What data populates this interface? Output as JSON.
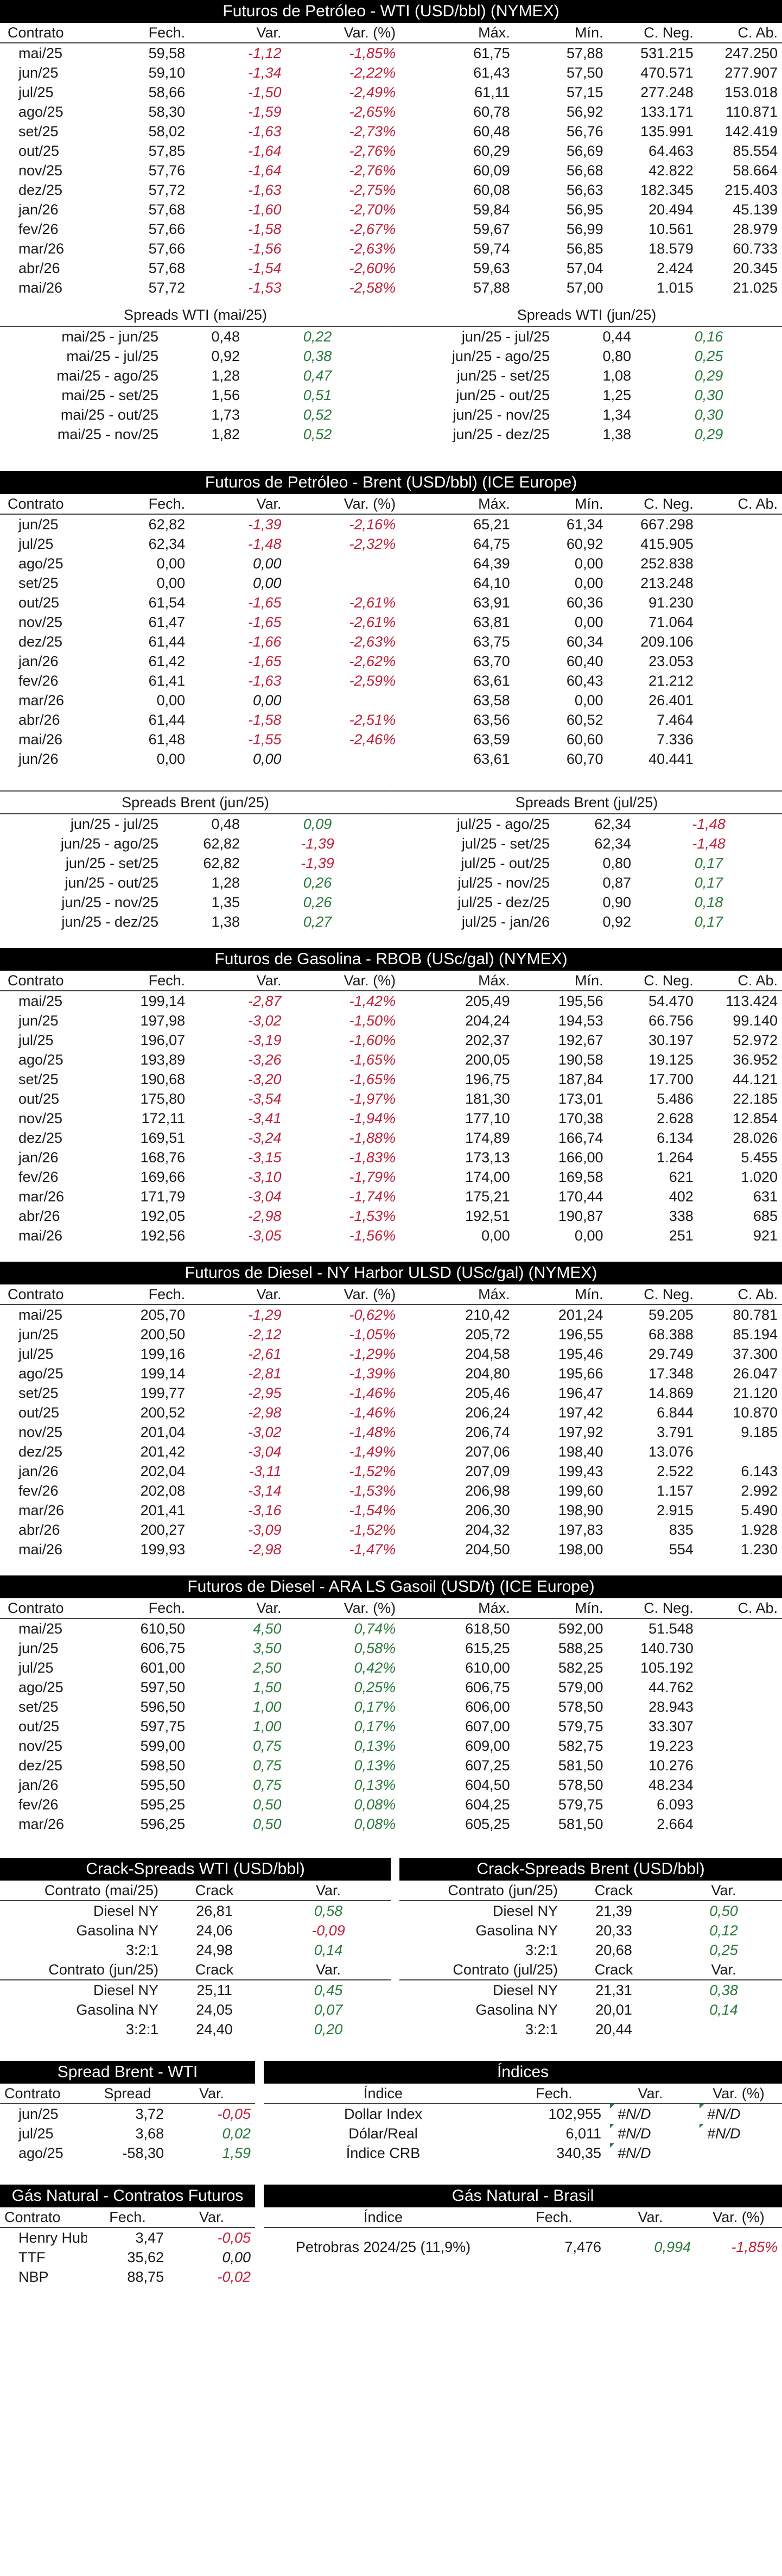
{
  "wti": {
    "title": "Futuros de Petróleo - WTI (USD/bbl) (NYMEX)",
    "columns": [
      "Contrato",
      "Fech.",
      "Var.",
      "Var. (%)",
      "Máx.",
      "Mín.",
      "C. Neg.",
      "C. Ab."
    ],
    "rows": [
      [
        "mai/25",
        "59,58",
        "-1,12",
        "-1,85%",
        "61,75",
        "57,88",
        "531.215",
        "247.250"
      ],
      [
        "jun/25",
        "59,10",
        "-1,34",
        "-2,22%",
        "61,43",
        "57,50",
        "470.571",
        "277.907"
      ],
      [
        "jul/25",
        "58,66",
        "-1,50",
        "-2,49%",
        "61,11",
        "57,15",
        "277.248",
        "153.018"
      ],
      [
        "ago/25",
        "58,30",
        "-1,59",
        "-2,65%",
        "60,78",
        "56,92",
        "133.171",
        "110.871"
      ],
      [
        "set/25",
        "58,02",
        "-1,63",
        "-2,73%",
        "60,48",
        "56,76",
        "135.991",
        "142.419"
      ],
      [
        "out/25",
        "57,85",
        "-1,64",
        "-2,76%",
        "60,29",
        "56,69",
        "64.463",
        "85.554"
      ],
      [
        "nov/25",
        "57,76",
        "-1,64",
        "-2,76%",
        "60,09",
        "56,68",
        "42.822",
        "58.664"
      ],
      [
        "dez/25",
        "57,72",
        "-1,63",
        "-2,75%",
        "60,08",
        "56,63",
        "182.345",
        "215.403"
      ],
      [
        "jan/26",
        "57,68",
        "-1,60",
        "-2,70%",
        "59,84",
        "56,95",
        "20.494",
        "45.139"
      ],
      [
        "fev/26",
        "57,66",
        "-1,58",
        "-2,67%",
        "59,67",
        "56,99",
        "10.561",
        "28.979"
      ],
      [
        "mar/26",
        "57,66",
        "-1,56",
        "-2,63%",
        "59,74",
        "56,85",
        "18.579",
        "60.733"
      ],
      [
        "abr/26",
        "57,68",
        "-1,54",
        "-2,60%",
        "59,63",
        "57,04",
        "2.424",
        "20.345"
      ],
      [
        "mai/26",
        "57,72",
        "-1,53",
        "-2,58%",
        "57,88",
        "57,00",
        "1.015",
        "21.025"
      ]
    ],
    "spreads_left": {
      "title": "Spreads WTI (mai/25)",
      "rows": [
        [
          "mai/25 - jun/25",
          "0,48",
          "0,22"
        ],
        [
          "mai/25 - jul/25",
          "0,92",
          "0,38"
        ],
        [
          "mai/25 - ago/25",
          "1,28",
          "0,47"
        ],
        [
          "mai/25 - set/25",
          "1,56",
          "0,51"
        ],
        [
          "mai/25 - out/25",
          "1,73",
          "0,52"
        ],
        [
          "mai/25 - nov/25",
          "1,82",
          "0,52"
        ]
      ]
    },
    "spreads_right": {
      "title": "Spreads WTI (jun/25)",
      "rows": [
        [
          "jun/25 - jul/25",
          "0,44",
          "0,16"
        ],
        [
          "jun/25 - ago/25",
          "0,80",
          "0,25"
        ],
        [
          "jun/25 - set/25",
          "1,08",
          "0,29"
        ],
        [
          "jun/25 - out/25",
          "1,25",
          "0,30"
        ],
        [
          "jun/25 - nov/25",
          "1,34",
          "0,30"
        ],
        [
          "jun/25 - dez/25",
          "1,38",
          "0,29"
        ]
      ]
    }
  },
  "brent": {
    "title": "Futuros de Petróleo - Brent (USD/bbl) (ICE Europe)",
    "columns": [
      "Contrato",
      "Fech.",
      "Var.",
      "Var. (%)",
      "Máx.",
      "Mín.",
      "C. Neg.",
      "C. Ab."
    ],
    "rows": [
      [
        "jun/25",
        "62,82",
        "-1,39",
        "-2,16%",
        "65,21",
        "61,34",
        "667.298",
        ""
      ],
      [
        "jul/25",
        "62,34",
        "-1,48",
        "-2,32%",
        "64,75",
        "60,92",
        "415.905",
        ""
      ],
      [
        "ago/25",
        "0,00",
        "0,00",
        "",
        "64,39",
        "0,00",
        "252.838",
        ""
      ],
      [
        "set/25",
        "0,00",
        "0,00",
        "",
        "64,10",
        "0,00",
        "213.248",
        ""
      ],
      [
        "out/25",
        "61,54",
        "-1,65",
        "-2,61%",
        "63,91",
        "60,36",
        "91.230",
        ""
      ],
      [
        "nov/25",
        "61,47",
        "-1,65",
        "-2,61%",
        "63,81",
        "0,00",
        "71.064",
        ""
      ],
      [
        "dez/25",
        "61,44",
        "-1,66",
        "-2,63%",
        "63,75",
        "60,34",
        "209.106",
        ""
      ],
      [
        "jan/26",
        "61,42",
        "-1,65",
        "-2,62%",
        "63,70",
        "60,40",
        "23.053",
        ""
      ],
      [
        "fev/26",
        "61,41",
        "-1,63",
        "-2,59%",
        "63,61",
        "60,43",
        "21.212",
        ""
      ],
      [
        "mar/26",
        "0,00",
        "0,00",
        "",
        "63,58",
        "0,00",
        "26.401",
        ""
      ],
      [
        "abr/26",
        "61,44",
        "-1,58",
        "-2,51%",
        "63,56",
        "60,52",
        "7.464",
        ""
      ],
      [
        "mai/26",
        "61,48",
        "-1,55",
        "-2,46%",
        "63,59",
        "60,60",
        "7.336",
        ""
      ],
      [
        "jun/26",
        "0,00",
        "0,00",
        "",
        "63,61",
        "60,70",
        "40.441",
        ""
      ]
    ],
    "spreads_left": {
      "title": "Spreads Brent (jun/25)",
      "rows": [
        [
          "jun/25 - jul/25",
          "0,48",
          "0,09"
        ],
        [
          "jun/25 - ago/25",
          "62,82",
          "-1,39"
        ],
        [
          "jun/25 - set/25",
          "62,82",
          "-1,39"
        ],
        [
          "jun/25 - out/25",
          "1,28",
          "0,26"
        ],
        [
          "jun/25 - nov/25",
          "1,35",
          "0,26"
        ],
        [
          "jun/25 - dez/25",
          "1,38",
          "0,27"
        ]
      ]
    },
    "spreads_right": {
      "title": "Spreads Brent (jul/25)",
      "rows": [
        [
          "jul/25 - ago/25",
          "62,34",
          "-1,48"
        ],
        [
          "jul/25 - set/25",
          "62,34",
          "-1,48"
        ],
        [
          "jul/25 - out/25",
          "0,80",
          "0,17"
        ],
        [
          "jul/25 - nov/25",
          "0,87",
          "0,17"
        ],
        [
          "jul/25 - dez/25",
          "0,90",
          "0,18"
        ],
        [
          "jul/25 - jan/26",
          "0,92",
          "0,17"
        ]
      ]
    }
  },
  "rbob": {
    "title": "Futuros de Gasolina - RBOB (USc/gal) (NYMEX)",
    "columns": [
      "Contrato",
      "Fech.",
      "Var.",
      "Var. (%)",
      "Máx.",
      "Mín.",
      "C. Neg.",
      "C. Ab."
    ],
    "rows": [
      [
        "mai/25",
        "199,14",
        "-2,87",
        "-1,42%",
        "205,49",
        "195,56",
        "54.470",
        "113.424"
      ],
      [
        "jun/25",
        "197,98",
        "-3,02",
        "-1,50%",
        "204,24",
        "194,53",
        "66.756",
        "99.140"
      ],
      [
        "jul/25",
        "196,07",
        "-3,19",
        "-1,60%",
        "202,37",
        "192,67",
        "30.197",
        "52.972"
      ],
      [
        "ago/25",
        "193,89",
        "-3,26",
        "-1,65%",
        "200,05",
        "190,58",
        "19.125",
        "36.952"
      ],
      [
        "set/25",
        "190,68",
        "-3,20",
        "-1,65%",
        "196,75",
        "187,84",
        "17.700",
        "44.121"
      ],
      [
        "out/25",
        "175,80",
        "-3,54",
        "-1,97%",
        "181,30",
        "173,01",
        "5.486",
        "22.185"
      ],
      [
        "nov/25",
        "172,11",
        "-3,41",
        "-1,94%",
        "177,10",
        "170,38",
        "2.628",
        "12.854"
      ],
      [
        "dez/25",
        "169,51",
        "-3,24",
        "-1,88%",
        "174,89",
        "166,74",
        "6.134",
        "28.026"
      ],
      [
        "jan/26",
        "168,76",
        "-3,15",
        "-1,83%",
        "173,13",
        "166,00",
        "1.264",
        "5.455"
      ],
      [
        "fev/26",
        "169,66",
        "-3,10",
        "-1,79%",
        "174,00",
        "169,58",
        "621",
        "1.020"
      ],
      [
        "mar/26",
        "171,79",
        "-3,04",
        "-1,74%",
        "175,21",
        "170,44",
        "402",
        "631"
      ],
      [
        "abr/26",
        "192,05",
        "-2,98",
        "-1,53%",
        "192,51",
        "190,87",
        "338",
        "685"
      ],
      [
        "mai/26",
        "192,56",
        "-3,05",
        "-1,56%",
        "0,00",
        "0,00",
        "251",
        "921"
      ]
    ]
  },
  "diesel_ny": {
    "title": "Futuros de Diesel - NY Harbor ULSD (USc/gal) (NYMEX)",
    "columns": [
      "Contrato",
      "Fech.",
      "Var.",
      "Var. (%)",
      "Máx.",
      "Mín.",
      "C. Neg.",
      "C. Ab."
    ],
    "rows": [
      [
        "mai/25",
        "205,70",
        "-1,29",
        "-0,62%",
        "210,42",
        "201,24",
        "59.205",
        "80.781"
      ],
      [
        "jun/25",
        "200,50",
        "-2,12",
        "-1,05%",
        "205,72",
        "196,55",
        "68.388",
        "85.194"
      ],
      [
        "jul/25",
        "199,16",
        "-2,61",
        "-1,29%",
        "204,58",
        "195,46",
        "29.749",
        "37.300"
      ],
      [
        "ago/25",
        "199,14",
        "-2,81",
        "-1,39%",
        "204,80",
        "195,66",
        "17.348",
        "26.047"
      ],
      [
        "set/25",
        "199,77",
        "-2,95",
        "-1,46%",
        "205,46",
        "196,47",
        "14.869",
        "21.120"
      ],
      [
        "out/25",
        "200,52",
        "-2,98",
        "-1,46%",
        "206,24",
        "197,42",
        "6.844",
        "10.870"
      ],
      [
        "nov/25",
        "201,04",
        "-3,02",
        "-1,48%",
        "206,74",
        "197,92",
        "3.791",
        "9.185"
      ],
      [
        "dez/25",
        "201,42",
        "-3,04",
        "-1,49%",
        "207,06",
        "198,40",
        "13.076",
        ""
      ],
      [
        "jan/26",
        "202,04",
        "-3,11",
        "-1,52%",
        "207,09",
        "199,43",
        "2.522",
        "6.143"
      ],
      [
        "fev/26",
        "202,08",
        "-3,14",
        "-1,53%",
        "206,98",
        "199,60",
        "1.157",
        "2.992"
      ],
      [
        "mar/26",
        "201,41",
        "-3,16",
        "-1,54%",
        "206,30",
        "198,90",
        "2.915",
        "5.490"
      ],
      [
        "abr/26",
        "200,27",
        "-3,09",
        "-1,52%",
        "204,32",
        "197,83",
        "835",
        "1.928"
      ],
      [
        "mai/26",
        "199,93",
        "-2,98",
        "-1,47%",
        "204,50",
        "198,00",
        "554",
        "1.230"
      ]
    ]
  },
  "gasoil": {
    "title": "Futuros de Diesel - ARA LS Gasoil (USD/t) (ICE Europe)",
    "columns": [
      "Contrato",
      "Fech.",
      "Var.",
      "Var. (%)",
      "Máx.",
      "Mín.",
      "C. Neg.",
      "C. Ab."
    ],
    "rows": [
      [
        "mai/25",
        "610,50",
        "4,50",
        "0,74%",
        "618,50",
        "592,00",
        "51.548",
        ""
      ],
      [
        "jun/25",
        "606,75",
        "3,50",
        "0,58%",
        "615,25",
        "588,25",
        "140.730",
        ""
      ],
      [
        "jul/25",
        "601,00",
        "2,50",
        "0,42%",
        "610,00",
        "582,25",
        "105.192",
        ""
      ],
      [
        "ago/25",
        "597,50",
        "1,50",
        "0,25%",
        "606,75",
        "579,00",
        "44.762",
        ""
      ],
      [
        "set/25",
        "596,50",
        "1,00",
        "0,17%",
        "606,00",
        "578,50",
        "28.943",
        ""
      ],
      [
        "out/25",
        "597,75",
        "1,00",
        "0,17%",
        "607,00",
        "579,75",
        "33.307",
        ""
      ],
      [
        "nov/25",
        "599,00",
        "0,75",
        "0,13%",
        "609,00",
        "582,75",
        "19.223",
        ""
      ],
      [
        "dez/25",
        "598,50",
        "0,75",
        "0,13%",
        "607,25",
        "581,50",
        "10.276",
        ""
      ],
      [
        "jan/26",
        "595,50",
        "0,75",
        "0,13%",
        "604,50",
        "578,50",
        "48.234",
        ""
      ],
      [
        "fev/26",
        "595,25",
        "0,50",
        "0,08%",
        "604,25",
        "579,75",
        "6.093",
        ""
      ],
      [
        "mar/26",
        "596,25",
        "0,50",
        "0,08%",
        "605,25",
        "581,50",
        "2.664",
        ""
      ]
    ]
  },
  "crack_wti": {
    "title": "Crack-Spreads WTI (USD/bbl)",
    "groups": [
      {
        "header": [
          "Contrato (mai/25)",
          "Crack",
          "Var."
        ],
        "rows": [
          [
            "Diesel NY",
            "26,81",
            "0,58"
          ],
          [
            "Gasolina NY",
            "24,06",
            "-0,09"
          ],
          [
            "3:2:1",
            "24,98",
            "0,14"
          ]
        ]
      },
      {
        "header": [
          "Contrato (jun/25)",
          "Crack",
          "Var."
        ],
        "rows": [
          [
            "Diesel NY",
            "25,11",
            "0,45"
          ],
          [
            "Gasolina NY",
            "24,05",
            "0,07"
          ],
          [
            "3:2:1",
            "24,40",
            "0,20"
          ]
        ]
      }
    ]
  },
  "crack_brent": {
    "title": "Crack-Spreads Brent (USD/bbl)",
    "groups": [
      {
        "header": [
          "Contrato (jun/25)",
          "Crack",
          "Var."
        ],
        "rows": [
          [
            "Diesel NY",
            "21,39",
            "0,50"
          ],
          [
            "Gasolina NY",
            "20,33",
            "0,12"
          ],
          [
            "3:2:1",
            "20,68",
            "0,25"
          ]
        ]
      },
      {
        "header": [
          "Contrato (jul/25)",
          "Crack",
          "Var."
        ],
        "rows": [
          [
            "Diesel NY",
            "21,31",
            "0,38"
          ],
          [
            "Gasolina NY",
            "20,01",
            "0,14"
          ],
          [
            "3:2:1",
            "20,44",
            ""
          ]
        ]
      }
    ]
  },
  "spread_bw": {
    "title": "Spread Brent - WTI",
    "columns": [
      "Contrato",
      "Spread",
      "Var."
    ],
    "rows": [
      [
        "jun/25",
        "3,72",
        "-0,05"
      ],
      [
        "jul/25",
        "3,68",
        "0,02"
      ],
      [
        "ago/25",
        "-58,30",
        "1,59"
      ]
    ]
  },
  "indices": {
    "title": "Índices",
    "columns": [
      "Índice",
      "Fech.",
      "Var.",
      "Var. (%)"
    ],
    "rows": [
      [
        "Dollar Index",
        "102,955",
        "#N/D",
        "#N/D"
      ],
      [
        "Dólar/Real",
        "6,011",
        "#N/D",
        "#N/D"
      ],
      [
        "Índice CRB",
        "340,35",
        "#N/D",
        ""
      ]
    ]
  },
  "gas_nat": {
    "title": "Gás Natural - Contratos Futuros",
    "columns": [
      "Contrato",
      "Fech.",
      "Var."
    ],
    "rows": [
      [
        "Henry Hub",
        "3,47",
        "-0,05"
      ],
      [
        "TTF",
        "35,62",
        "0,00"
      ],
      [
        "NBP",
        "88,75",
        "-0,02"
      ]
    ]
  },
  "gas_br": {
    "title": "Gás Natural - Brasil",
    "columns": [
      "Índice",
      "Fech.",
      "Var.",
      "Var. (%)"
    ],
    "rows": [
      [
        "Petrobras 2024/25 (11,9%)",
        "7,476",
        "0,994",
        "-1,85%"
      ]
    ]
  },
  "colors": {
    "negative": "#c0213a",
    "positive": "#2b7a3b",
    "header_bg": "#000000",
    "header_fg": "#ffffff"
  }
}
